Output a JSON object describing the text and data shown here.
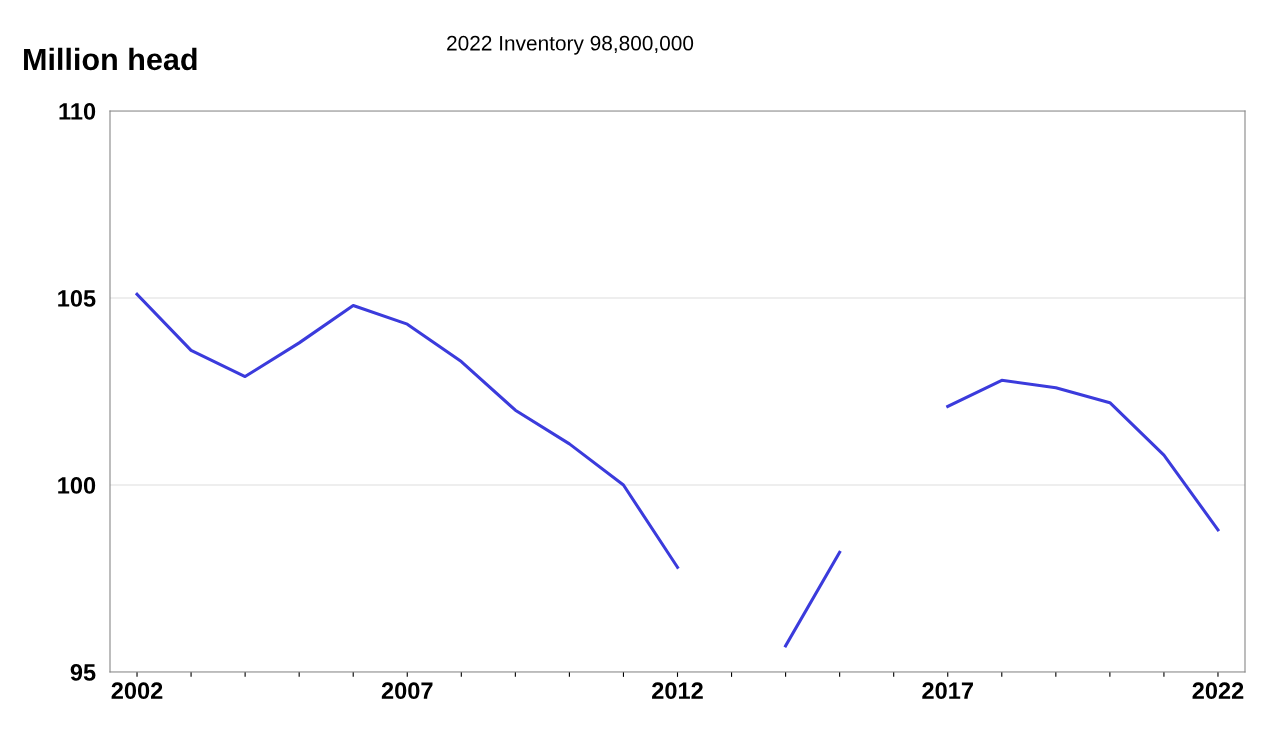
{
  "chart_data": {
    "type": "line",
    "title": "2022 Inventory 98,800,000",
    "ylabel": "Million head",
    "x": [
      2002,
      2003,
      2004,
      2005,
      2006,
      2007,
      2008,
      2009,
      2010,
      2011,
      2012,
      2013,
      2014,
      2015,
      2016,
      2017,
      2018,
      2019,
      2020,
      2021,
      2022
    ],
    "series": [
      {
        "color": "#3b3bdc",
        "values": [
          105.1,
          103.6,
          102.9,
          103.8,
          104.8,
          104.3,
          103.3,
          102.0,
          101.1,
          100.0,
          97.8,
          null,
          95.7,
          98.2,
          null,
          102.1,
          102.8,
          102.6,
          102.2,
          100.8,
          98.8
        ]
      }
    ],
    "xlim": [
      2001.5,
      2022.5
    ],
    "xticks": [
      2002,
      {
        "value": 2003,
        "label": null
      },
      {
        "value": 2004,
        "label": null
      },
      {
        "value": 2005,
        "label": null
      },
      {
        "value": 2006,
        "label": null
      },
      2007,
      {
        "value": 2008,
        "label": null
      },
      {
        "value": 2009,
        "label": null
      },
      {
        "value": 2010,
        "label": null
      },
      {
        "value": 2011,
        "label": null
      },
      2012,
      {
        "value": 2013,
        "label": null
      },
      {
        "value": 2014,
        "label": null
      },
      {
        "value": 2015,
        "label": null
      },
      {
        "value": 2016,
        "label": null
      },
      2017,
      {
        "value": 2018,
        "label": null
      },
      {
        "value": 2019,
        "label": null
      },
      {
        "value": 2020,
        "label": null
      },
      {
        "value": 2021,
        "label": null
      },
      2022
    ],
    "ylim": [
      95,
      110
    ],
    "yticks": [
      95,
      100,
      105,
      110
    ],
    "grid": "y",
    "marker": "none",
    "line_style": "solid"
  }
}
